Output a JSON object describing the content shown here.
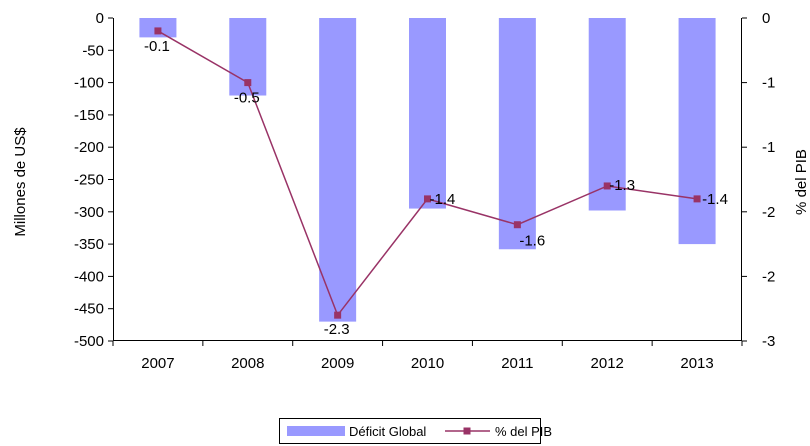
{
  "chart_data": {
    "type": "bar",
    "categories": [
      "2007",
      "2008",
      "2009",
      "2010",
      "2011",
      "2012",
      "2013"
    ],
    "series": [
      {
        "name": "Déficit Global",
        "type": "bar",
        "axis": "left",
        "values": [
          -30,
          -120,
          -470,
          -295,
          -358,
          -298,
          -350
        ]
      },
      {
        "name": "% del PIB",
        "type": "line",
        "axis": "right",
        "values": [
          -0.1,
          -0.5,
          -2.3,
          -1.4,
          -1.6,
          -1.3,
          -1.4
        ],
        "data_labels": [
          "-0.1",
          "-0.5",
          "-2.3",
          "-1.4",
          "-1.6",
          "-1.3",
          "-1.4"
        ]
      }
    ],
    "ylabel": "Millones de US$",
    "ylim": [
      -500,
      0
    ],
    "yticks": [
      "0",
      "-50",
      "-100",
      "-150",
      "-200",
      "-250",
      "-300",
      "-350",
      "-400",
      "-450",
      "-500"
    ],
    "y2label": "% del PIB",
    "y2lim": [
      -2.5,
      0
    ],
    "y2ticks": [
      "0",
      "-1",
      "-1",
      "-2",
      "-2",
      "-3"
    ],
    "legend_position": "bottom",
    "grid": false,
    "colors": {
      "bar": "#9999ff",
      "line": "#993366",
      "axis": "#000000"
    }
  }
}
